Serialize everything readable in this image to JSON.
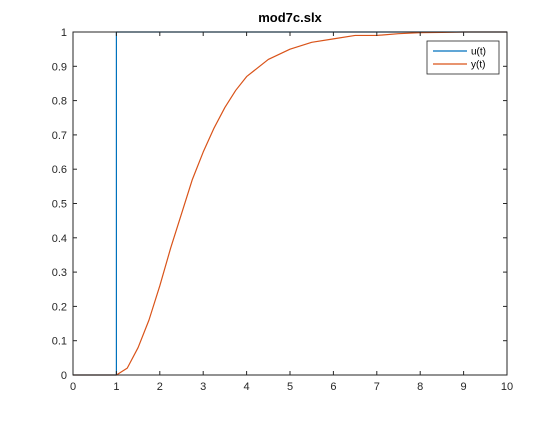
{
  "chart_data": {
    "type": "line",
    "title": "mod7c.slx",
    "xlabel": "",
    "ylabel": "",
    "xlim": [
      0,
      10
    ],
    "ylim": [
      0,
      1
    ],
    "xticks": [
      "0",
      "1",
      "2",
      "3",
      "4",
      "5",
      "6",
      "7",
      "8",
      "9",
      "10"
    ],
    "yticks": [
      "0",
      "0.1",
      "0.2",
      "0.3",
      "0.4",
      "0.5",
      "0.6",
      "0.7",
      "0.8",
      "0.9",
      "1"
    ],
    "grid": false,
    "legend_position": "top-right",
    "series": [
      {
        "name": "u(t)",
        "color": "#0072BD",
        "x": [
          0,
          1,
          1,
          10
        ],
        "y": [
          0,
          0,
          1,
          1
        ]
      },
      {
        "name": "y(t)",
        "color": "#D95319",
        "x": [
          0,
          1,
          1.25,
          1.5,
          1.75,
          2,
          2.25,
          2.5,
          2.75,
          3,
          3.25,
          3.5,
          3.75,
          4,
          4.5,
          5,
          5.5,
          6,
          6.5,
          7,
          7.5,
          8,
          8.5,
          9,
          9.5,
          10
        ],
        "y": [
          0,
          0,
          0.02,
          0.08,
          0.16,
          0.26,
          0.37,
          0.47,
          0.57,
          0.65,
          0.72,
          0.78,
          0.83,
          0.87,
          0.92,
          0.95,
          0.97,
          0.98,
          0.99,
          0.99,
          0.995,
          0.998,
          0.999,
          1,
          1,
          1
        ]
      }
    ]
  }
}
